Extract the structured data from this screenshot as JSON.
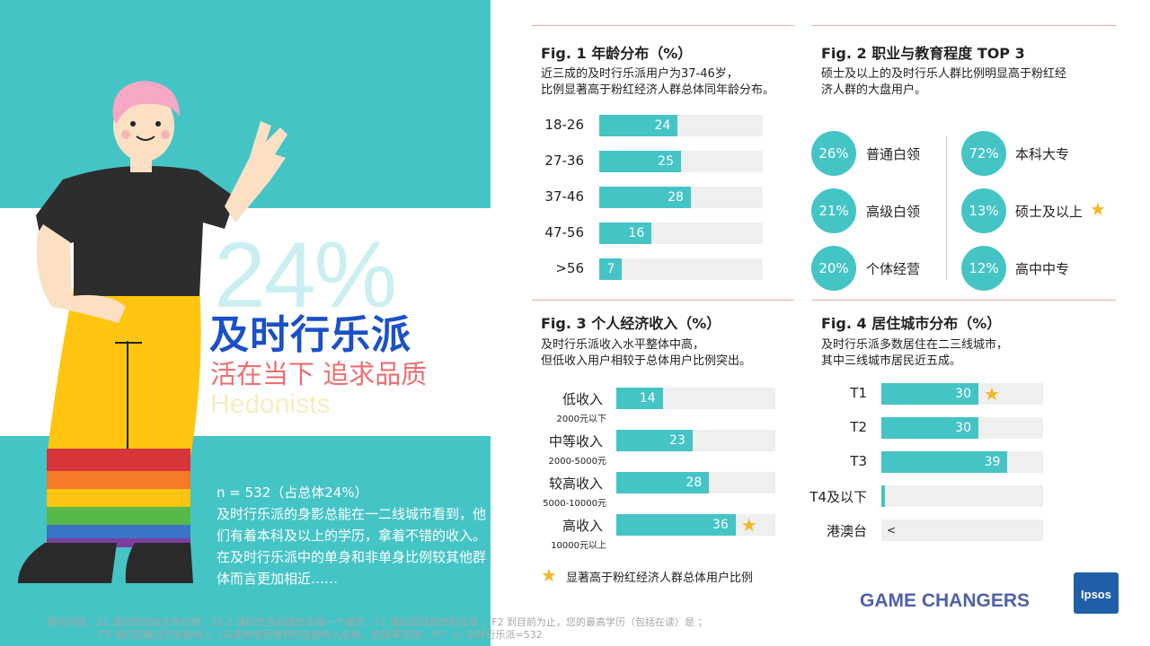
{
  "hero": {
    "big_percent": "24%",
    "title": "及时行乐派",
    "subtitle": "活在当下 追求品质",
    "english": "Hedonists",
    "sample": "n = 532（占总体24%）",
    "description": "及时行乐派的身影总能在一二线城市看到，他们有着本科及以上的学历，拿着不错的收入。在及时行乐派中的单身和非单身比例较其他群体而言更加相近……"
  },
  "fig1": {
    "title": "Fig. 1  年龄分布（%）",
    "desc_line1": "近三成的及时行乐派用户为37-46岁，",
    "desc_line2": "比例显著高于粉红经济人群总体同年龄分布。",
    "chart_data": {
      "type": "bar",
      "orientation": "horizontal",
      "categories": [
        "18-26",
        "27-36",
        "37-46",
        "47-56",
        ">56"
      ],
      "values": [
        24,
        25,
        28,
        16,
        7
      ],
      "xlim": [
        0,
        50
      ]
    }
  },
  "fig2": {
    "title": "Fig. 2  职业与教育程度 TOP 3",
    "desc_line1": "硕士及以上的及时行乐人群比例明显高于粉红经",
    "desc_line2": "济人群的大盘用户。",
    "occupation": [
      {
        "value": "26%",
        "label": "普通白领"
      },
      {
        "value": "21%",
        "label": "高级白领"
      },
      {
        "value": "20%",
        "label": "个体经营"
      }
    ],
    "education": [
      {
        "value": "72%",
        "label": "本科大专"
      },
      {
        "value": "13%",
        "label": "硕士及以上",
        "star": true
      },
      {
        "value": "12%",
        "label": "高中中专"
      }
    ]
  },
  "fig3": {
    "title": "Fig. 3  个人经济收入（%）",
    "desc_line1": "及时行乐派收入水平整体中高，",
    "desc_line2": "但低收入用户相较于总体用户比例突出。",
    "legend": "显著高于粉红经济人群总体用户比例",
    "sublabels": [
      "2000元以下",
      "2000-5000元",
      "5000-10000元",
      "10000元以上"
    ],
    "chart_data": {
      "type": "bar",
      "orientation": "horizontal",
      "categories": [
        "低收入",
        "中等收入",
        "较高收入",
        "高收入"
      ],
      "values": [
        14,
        23,
        28,
        36
      ],
      "starred": [
        false,
        false,
        false,
        true
      ],
      "xlim": [
        0,
        48
      ]
    }
  },
  "fig4": {
    "title": "Fig. 4  居住城市分布（%）",
    "desc_line1": "及时行乐派多数居住在二三线城市，",
    "desc_line2": "其中三线城市居民近五成。",
    "chart_data": {
      "type": "bar",
      "orientation": "horizontal",
      "categories": [
        "T1",
        "T2",
        "T3",
        "T4及以下",
        "港澳台"
      ],
      "values": [
        30,
        30,
        39,
        1,
        0
      ],
      "value_labels": [
        "30",
        "30",
        "39",
        "",
        "<"
      ],
      "starred": [
        true,
        false,
        false,
        false,
        false
      ],
      "xlim": [
        0,
        50
      ]
    }
  },
  "brand": {
    "tagline": "GAME CHANGERS",
    "logo": "Ipsos"
  },
  "footnote": {
    "line1": "提问问题：S1 请问您的出生年份是；S3-2 请问您当前居住在哪一个城市；F1 请问您目前的职业是 ；F2 到目前为止，您的最高学历（包括在读）是 ；",
    "line2": "F3 请问您每月可支配收入（从各种途径得到的全部收入总和，包括零花钱）为？   n: 及时行乐派=532"
  },
  "colors": {
    "teal": "#45c4c6",
    "blue": "#1a50c8",
    "coral": "#ee6e72",
    "star": "#f4b826"
  }
}
